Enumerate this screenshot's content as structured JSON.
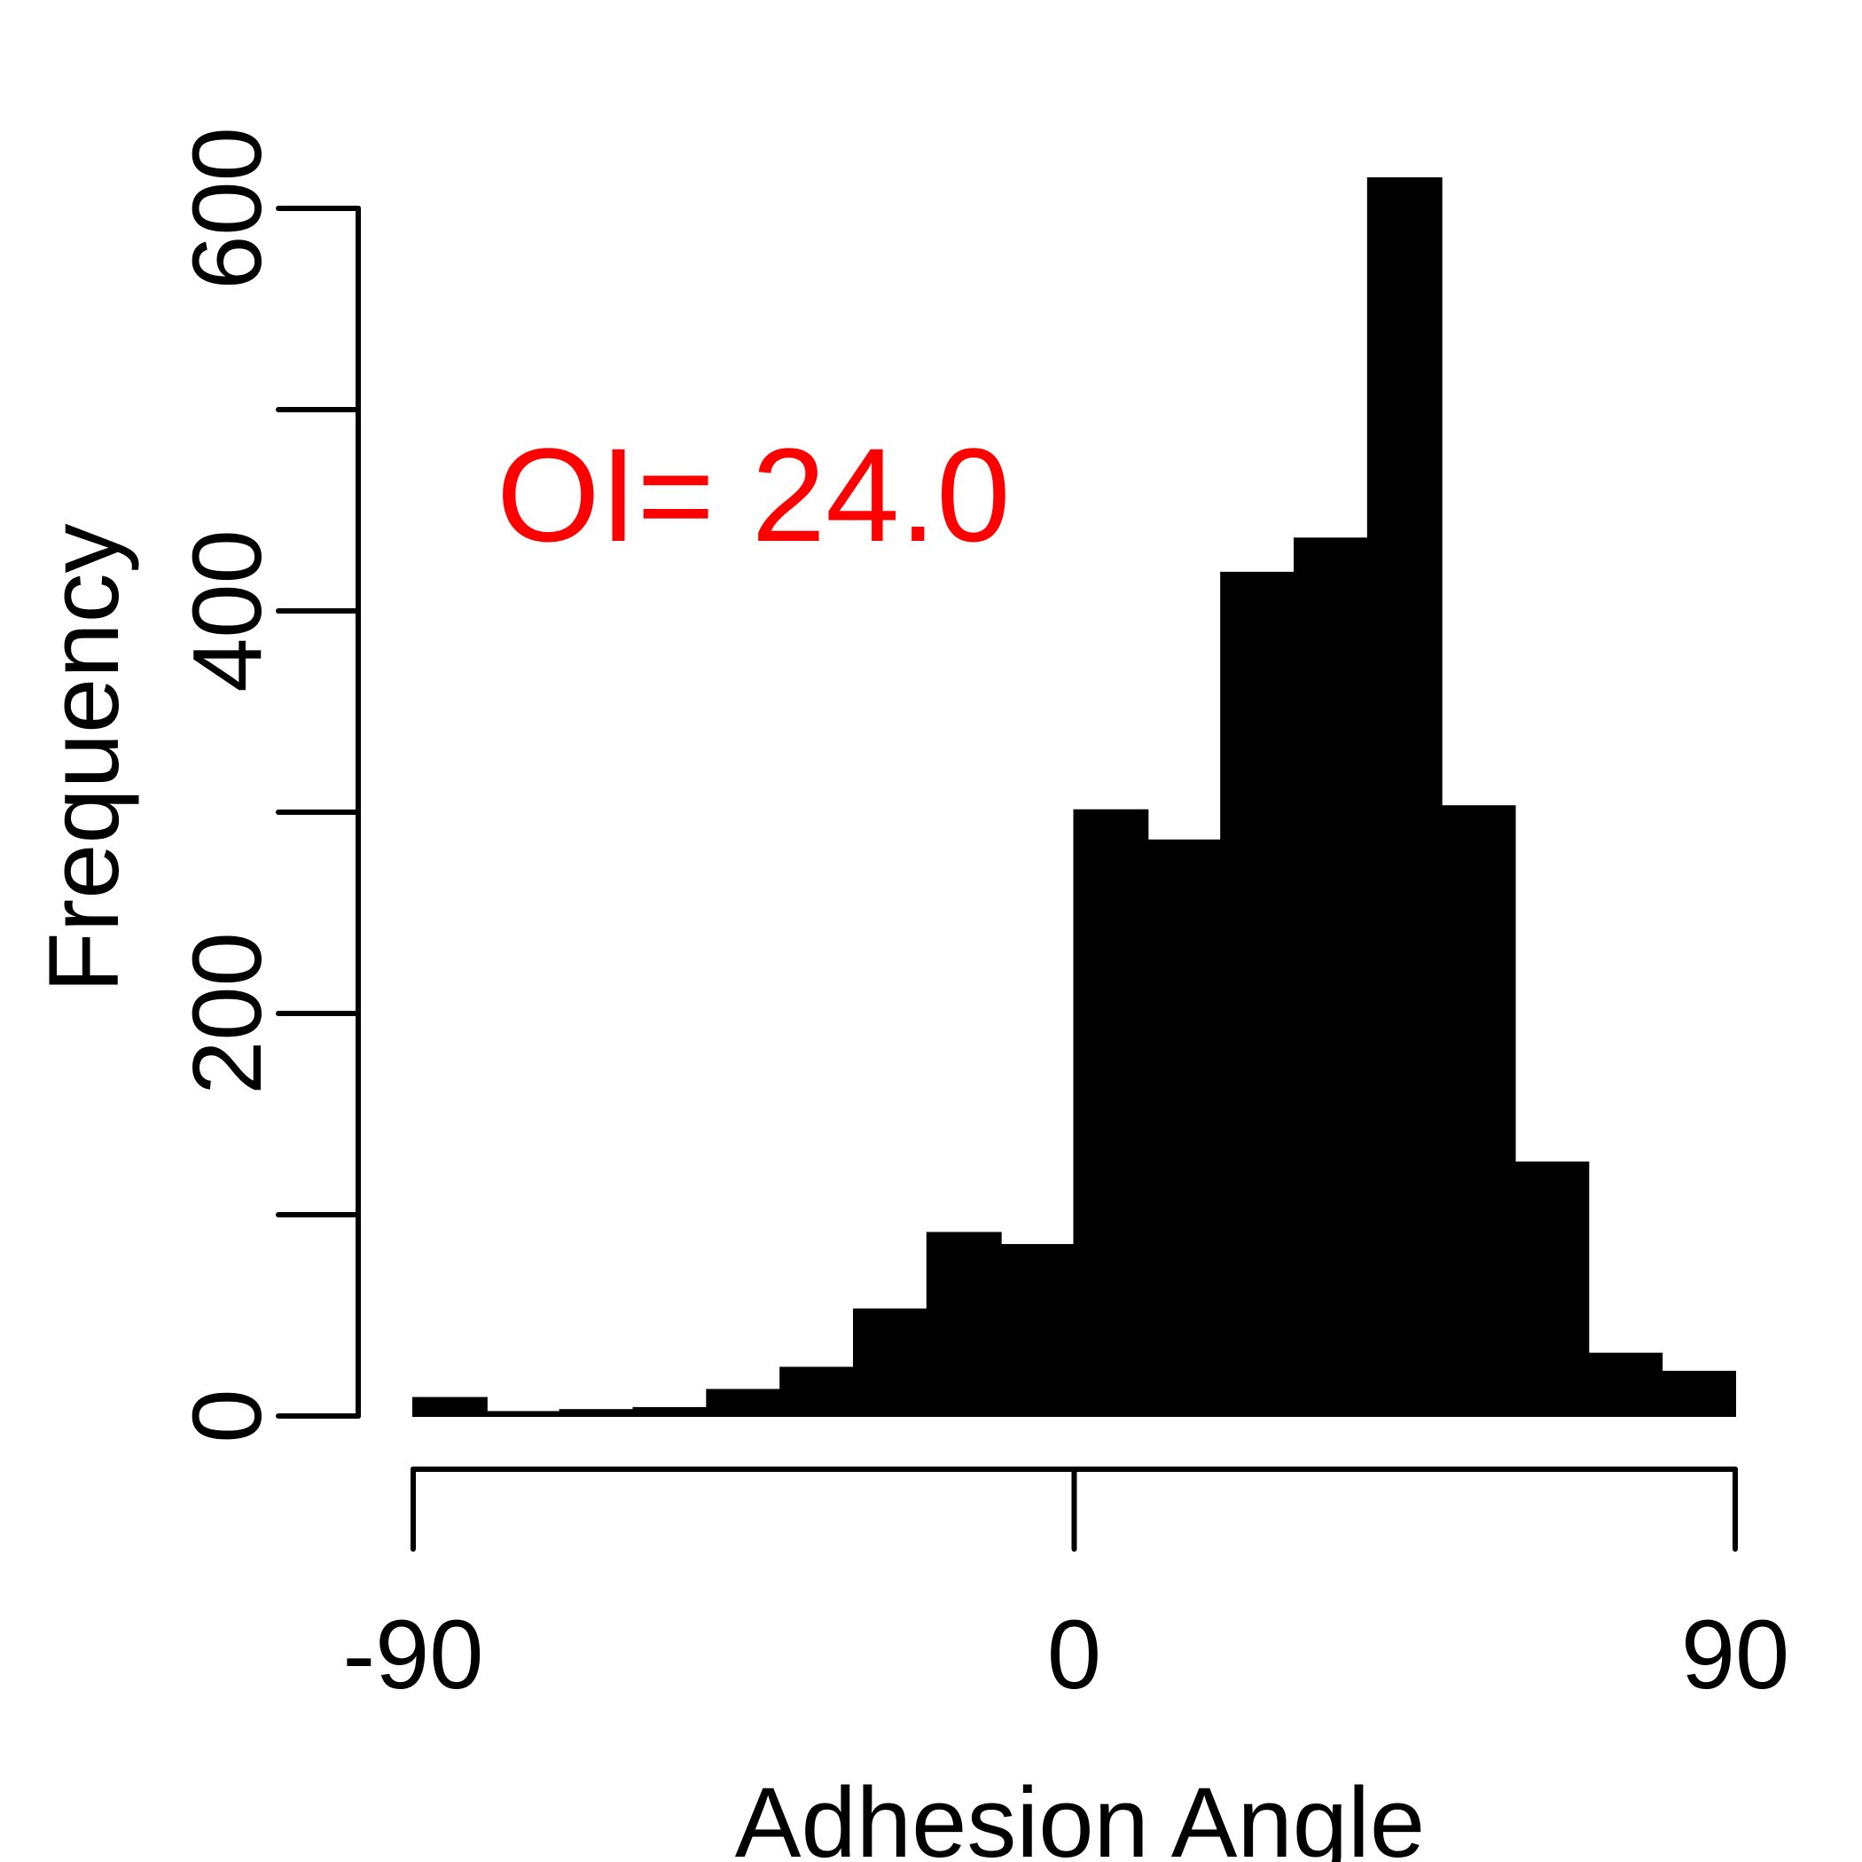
{
  "chart_data": {
    "type": "bar",
    "title": "",
    "xlabel": "Adhesion Angle",
    "ylabel": "Frequency",
    "annotation": "OI= 24.0",
    "annotation_color": "#ff0000",
    "bar_color": "#000000",
    "xlim": [
      -90,
      90
    ],
    "ylim": [
      0,
      600
    ],
    "x_ticks": [
      -90,
      0,
      90
    ],
    "x_tick_labels": [
      "-90",
      "0",
      "90"
    ],
    "y_ticks": [
      0,
      100,
      200,
      300,
      400,
      500,
      600
    ],
    "y_tick_labels": [
      "0",
      "",
      "200",
      "",
      "400",
      "",
      "600"
    ],
    "bin_edges": [
      -90,
      -80,
      -70,
      -60,
      -50,
      -40,
      -30,
      -20,
      -10,
      0,
      10,
      20,
      30,
      40,
      50,
      60,
      70,
      80,
      90
    ],
    "values": [
      9,
      2,
      3,
      4,
      13,
      24,
      53,
      91,
      85,
      301,
      286,
      419,
      436,
      615,
      303,
      126,
      31,
      22
    ],
    "grid": false,
    "legend": "none"
  }
}
